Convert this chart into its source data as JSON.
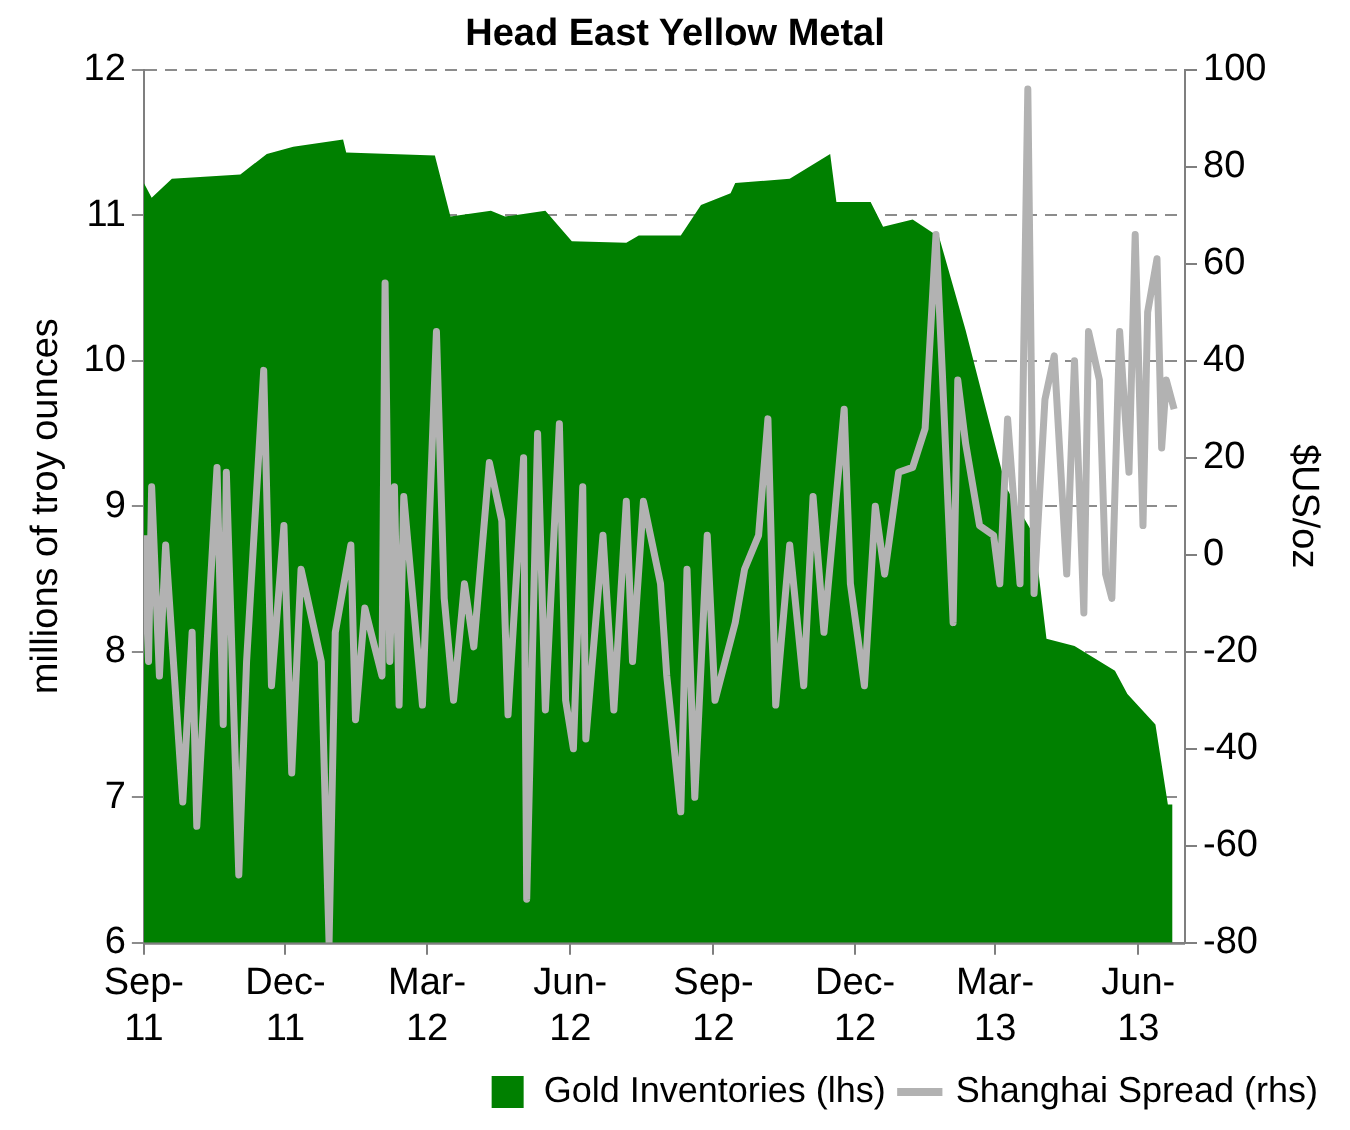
{
  "chart_data": {
    "type": "area",
    "title": "Head East Yellow Metal",
    "ylabel": "millions of troy ounces",
    "y2label": "$US/oz",
    "xlim": [
      "2011-09-01",
      "2013-07-01"
    ],
    "xticks": [
      {
        "value": "2011-09-01",
        "label": "Sep-11"
      },
      {
        "value": "2011-12-01",
        "label": "Dec-11"
      },
      {
        "value": "2012-03-01",
        "label": "Mar-12"
      },
      {
        "value": "2012-06-01",
        "label": "Jun-12"
      },
      {
        "value": "2012-09-01",
        "label": "Sep-12"
      },
      {
        "value": "2012-12-01",
        "label": "Dec-12"
      },
      {
        "value": "2013-03-01",
        "label": "Mar-13"
      },
      {
        "value": "2013-06-01",
        "label": "Jun-13"
      }
    ],
    "ylim": [
      6,
      12
    ],
    "yticks": [
      6,
      7,
      8,
      9,
      10,
      11,
      12
    ],
    "y2lim": [
      -80,
      100
    ],
    "y2ticks": [
      -80,
      -60,
      -40,
      -20,
      0,
      20,
      40,
      60,
      80,
      100
    ],
    "grid": "y",
    "legend": "bottom",
    "marker": "none",
    "line_style": "solid",
    "series": [
      {
        "name": "Gold Inventories (lhs)",
        "type": "area",
        "color": "#008000",
        "x": [
          "2011-09-01",
          "2011-09-06",
          "2011-09-19",
          "2011-11-02",
          "2011-11-19",
          "2011-12-06",
          "2012-01-07",
          "2012-01-09",
          "2012-03-06",
          "2012-03-16",
          "2012-04-11",
          "2012-04-20",
          "2012-05-16",
          "2012-06-02",
          "2012-07-07",
          "2012-07-15",
          "2012-08-11",
          "2012-08-24",
          "2012-09-12",
          "2012-09-15",
          "2012-10-20",
          "2012-11-15",
          "2012-11-19",
          "2012-12-11",
          "2012-12-19",
          "2013-01-07",
          "2013-01-24",
          "2013-02-10",
          "2013-03-08",
          "2013-03-26",
          "2013-04-03",
          "2013-04-21",
          "2013-05-17",
          "2013-05-25",
          "2013-06-12",
          "2013-06-20",
          "2013-06-23"
        ],
        "values": [
          11.22,
          11.12,
          11.25,
          11.28,
          11.42,
          11.47,
          11.52,
          11.43,
          11.41,
          10.99,
          11.03,
          10.99,
          11.03,
          10.82,
          10.81,
          10.86,
          10.86,
          11.07,
          11.15,
          11.22,
          11.25,
          11.42,
          11.09,
          11.09,
          10.92,
          10.97,
          10.85,
          10.21,
          9.13,
          8.8,
          8.09,
          8.04,
          7.87,
          7.71,
          7.5,
          6.95,
          6.95
        ]
      },
      {
        "name": "Shanghai Spread (rhs)",
        "type": "line",
        "axis": "y2",
        "color": "#b2b2b2",
        "x": [
          "2011-09-01",
          "2011-09-04",
          "2011-09-06",
          "2011-09-11",
          "2011-09-15",
          "2011-09-26",
          "2011-10-02",
          "2011-10-05",
          "2011-10-18",
          "2011-10-22",
          "2011-10-24",
          "2011-11-01",
          "2011-11-06",
          "2011-11-17",
          "2011-11-22",
          "2011-11-30",
          "2011-12-05",
          "2011-12-11",
          "2011-12-24",
          "2011-12-29",
          "2012-01-02",
          "2012-01-12",
          "2012-01-15",
          "2012-01-21",
          "2012-02-01",
          "2012-02-03",
          "2012-02-06",
          "2012-02-09",
          "2012-02-12",
          "2012-02-15",
          "2012-02-27",
          "2012-03-07",
          "2012-03-12",
          "2012-03-18",
          "2012-03-25",
          "2012-03-31",
          "2012-04-10",
          "2012-04-18",
          "2012-04-22",
          "2012-05-02",
          "2012-05-04",
          "2012-05-11",
          "2012-05-16",
          "2012-05-25",
          "2012-05-29",
          "2012-06-03",
          "2012-06-09",
          "2012-06-11",
          "2012-06-22",
          "2012-06-29",
          "2012-07-07",
          "2012-07-11",
          "2012-07-18",
          "2012-07-29",
          "2012-08-02",
          "2012-08-11",
          "2012-08-15",
          "2012-08-20",
          "2012-08-28",
          "2012-09-02",
          "2012-09-15",
          "2012-09-21",
          "2012-09-30",
          "2012-10-06",
          "2012-10-11",
          "2012-10-20",
          "2012-10-29",
          "2012-11-04",
          "2012-11-11",
          "2012-11-24",
          "2012-11-28",
          "2012-12-07",
          "2012-12-14",
          "2012-12-20",
          "2012-12-29",
          "2013-01-07",
          "2013-01-15",
          "2013-01-22",
          "2013-01-26",
          "2013-02-02",
          "2013-02-05",
          "2013-02-10",
          "2013-02-19",
          "2013-02-28",
          "2013-03-04",
          "2013-03-09",
          "2013-03-17",
          "2013-03-22",
          "2013-03-26",
          "2013-04-02",
          "2013-04-08",
          "2013-04-16",
          "2013-04-21",
          "2013-04-27",
          "2013-04-30",
          "2013-05-07",
          "2013-05-11",
          "2013-05-15",
          "2013-05-20",
          "2013-05-26",
          "2013-05-30",
          "2013-06-04",
          "2013-06-07",
          "2013-06-13",
          "2013-06-16",
          "2013-06-19",
          "2013-06-24"
        ],
        "values": [
          4,
          -22,
          14,
          -25,
          2,
          -51,
          -16,
          -56,
          18,
          -35,
          17,
          -66,
          -22,
          38,
          -27,
          6,
          -45,
          -3,
          -22,
          -80,
          -16,
          2,
          -34,
          -11,
          -25,
          56,
          -22,
          14,
          -31,
          12,
          -31,
          46,
          -9,
          -30,
          -6,
          -19,
          19,
          7,
          -33,
          20,
          -71,
          25,
          -32,
          27,
          -30,
          -40,
          14,
          -38,
          4,
          -32,
          11,
          -22,
          11,
          -6,
          -25,
          -53,
          -3,
          -50,
          4,
          -30,
          -14,
          -3,
          4,
          28,
          -31,
          2,
          -27,
          12,
          -16,
          30,
          -6,
          -27,
          10,
          -4,
          17,
          18,
          26,
          66,
          38,
          -14,
          36,
          23,
          6,
          4,
          -6,
          28,
          -6,
          96,
          -8,
          32,
          41,
          -4,
          40,
          -12,
          46,
          36,
          -4,
          -9,
          46,
          17,
          66,
          6,
          50,
          61,
          22,
          36,
          30
        ]
      }
    ]
  }
}
